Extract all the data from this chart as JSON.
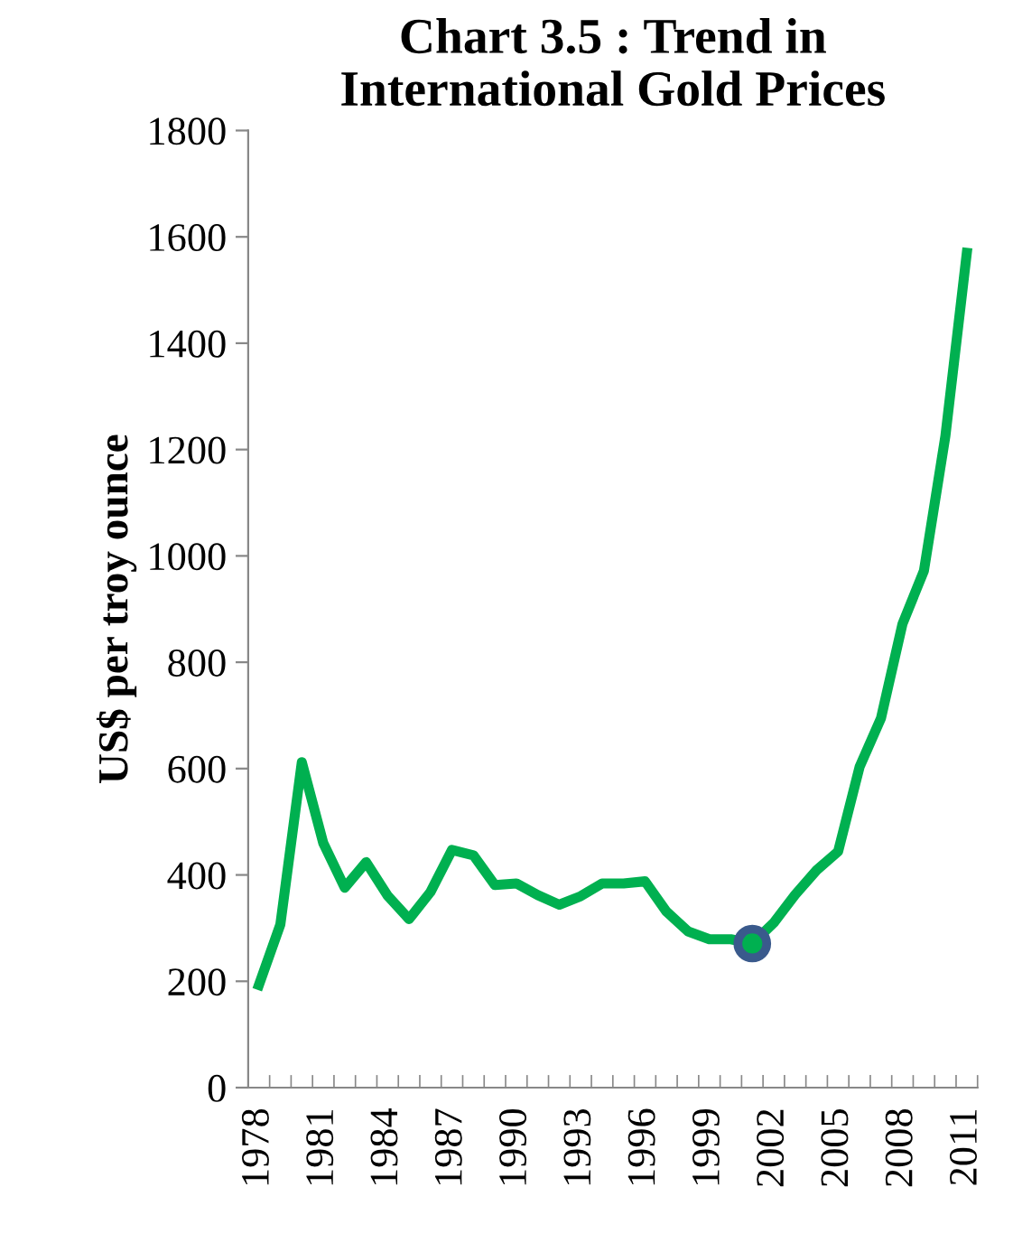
{
  "chart_data": {
    "type": "line",
    "title": "Chart 3.5 : Trend in\nInternational Gold Prices",
    "ylabel": "US$ per troy ounce",
    "categories": [
      "1978",
      null,
      null,
      "1981",
      null,
      null,
      "1984",
      null,
      null,
      "1987",
      null,
      null,
      "1990",
      null,
      null,
      "1993",
      null,
      null,
      "1996",
      null,
      null,
      "1999",
      null,
      null,
      "2002",
      null,
      null,
      "2005",
      null,
      null,
      "2008",
      null,
      null,
      "2011"
    ],
    "series": [
      {
        "color": "#00b050",
        "values": [
          193,
          307,
          612,
          460,
          376,
          424,
          361,
          317,
          368,
          447,
          437,
          381,
          384,
          362,
          344,
          360,
          384,
          384,
          388,
          331,
          294,
          279,
          279,
          271,
          310,
          363,
          409,
          444,
          603,
          695,
          872,
          972,
          1225,
          1570
        ]
      },
      {
        "type": "scatter",
        "color": "#3a5a8c",
        "marker": "circle",
        "values": [
          null,
          null,
          null,
          null,
          null,
          null,
          null,
          null,
          null,
          null,
          null,
          null,
          null,
          null,
          null,
          null,
          null,
          null,
          null,
          null,
          null,
          null,
          null,
          271,
          null,
          null,
          null,
          null,
          null,
          null,
          null,
          null,
          null,
          null
        ]
      }
    ],
    "ylim": [
      0,
      1800
    ],
    "yticks": [
      0,
      200,
      400,
      600,
      800,
      1000,
      1200,
      1400,
      1600,
      1800
    ],
    "grid": false,
    "legend": false,
    "line_style": "solid"
  }
}
